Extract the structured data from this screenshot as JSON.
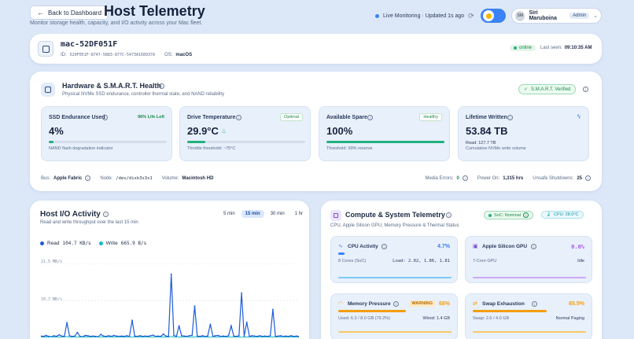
{
  "header": {
    "back_label": "Back to Dashboard",
    "title": "Host Telemetry",
    "subtitle": "Monitor storage health, capacity, and I/O activity across your Mac fleet.",
    "live_text": "Live Monitoring · Updated 1s ago",
    "user_initials": "SM",
    "user_name": "Siri Maruboina",
    "user_role": "Admin"
  },
  "host": {
    "name": "mac-52DF051F",
    "id_label": "ID:",
    "id_value": "520F051F-8747-5883-877C-5473A168937A",
    "os_label": "OS:",
    "os_value": "macOS",
    "status": "online",
    "last_seen_label": "Last seen:",
    "last_seen": "09:10:35 AM"
  },
  "hardware": {
    "title": "Hardware & S.M.A.R.T. Health",
    "subtitle": "Physical NVMe SSD endurance, controller thermal state, and NAND reliability",
    "verified": "S.M.A.R.T. Verified",
    "tiles": [
      {
        "name": "SSD Endurance Used",
        "badge": "96% Life Left",
        "value": "4%",
        "sub": "NAND flash degradation indicator",
        "progress": 0.04,
        "color": "#22b07d"
      },
      {
        "name": "Drive Temperature",
        "badge": "Optimal",
        "value": "29.9°C",
        "sub": "Throttle threshold: ~75°C",
        "progress": 0.15,
        "color": "#22b07d"
      },
      {
        "name": "Available Spare",
        "badge": "Healthy",
        "value": "100%",
        "sub": "Threshold: 99% reserve",
        "progress": 1.0,
        "color": "#22b07d"
      },
      {
        "name": "Lifetime Written",
        "badge": "",
        "value": "53.84 TB",
        "sub_top": "Read: 127.7 TB",
        "sub": "Cumulative NVMe write volume"
      }
    ],
    "bus_label": "Bus:",
    "bus": "Apple Fabric",
    "node_label": "Node:",
    "node": "/dev/disk3s3s1",
    "volume_label": "Volume:",
    "volume": "Macintosh HD",
    "media_errors_label": "Media Errors:",
    "media_errors": "0",
    "power_on_label": "Power On:",
    "power_on": "1,315 hrs",
    "unsafe_label": "Unsafe Shutdowns:",
    "unsafe": "25"
  },
  "io": {
    "title": "Host I/O Activity",
    "subtitle": "Read and write throughput over the last 15 min",
    "ranges": [
      "5 min",
      "15 min",
      "30 min",
      "1 hr"
    ],
    "active_range": "15 min",
    "read_legend": "Read",
    "read_value": "104.7 KB/s",
    "write_legend": "Write",
    "write_value": "665.9 B/s",
    "tick_top": "21.5 MB/s",
    "tick_mid": "10.7 MB/s"
  },
  "chart_data": {
    "type": "line",
    "ylim": [
      0,
      21.5
    ],
    "series": [
      {
        "name": "Read",
        "values": [
          0.4,
          0.3,
          0.6,
          0.3,
          0.2,
          0.5,
          0.3,
          0.8,
          0.4,
          0.3,
          4.5,
          0.5,
          0.3,
          0.4,
          1.5,
          0.3,
          0.2,
          0.6,
          0.5,
          0.3,
          0.4,
          0.3,
          0.2,
          0.9,
          0.4,
          0.3,
          0.5,
          0.3,
          0.6,
          0.4,
          0.3,
          0.4,
          0.3,
          0.5,
          0.3,
          5.2,
          0.4,
          0.3,
          0.5,
          0.3,
          0.4,
          0.3,
          0.5,
          0.7,
          0.3,
          0.4,
          0.3,
          1.0,
          0.4,
          0.3,
          19.2,
          0.6,
          0.3,
          3.5,
          0.5,
          0.4,
          0.3,
          0.5,
          0.6,
          9.5,
          0.4,
          0.3,
          0.5,
          0.3,
          0.4,
          4.0,
          0.3,
          0.5,
          0.6,
          0.3,
          0.4,
          0.3,
          0.5,
          3.5,
          0.4,
          0.3,
          0.5,
          13.5,
          0.4,
          4.6,
          0.3,
          0.5,
          0.4,
          0.3,
          0.5,
          0.3,
          0.4,
          0.3,
          0.5,
          8.5,
          0.3,
          0.4,
          0.5,
          0.3,
          0.4,
          0.3,
          0.5,
          0.3,
          0.4,
          0.3
        ]
      },
      {
        "name": "Write",
        "values": [
          0.1,
          0.1,
          0.2,
          0.1,
          0.1,
          0.2,
          0.1,
          0.1,
          0.2,
          0.1,
          0.3,
          0.1,
          0.1,
          0.2,
          0.1,
          0.1,
          0.1,
          0.2,
          0.1,
          0.1,
          0.2,
          0.1,
          0.1,
          0.1,
          0.2,
          0.1,
          0.1,
          0.2,
          0.1,
          0.1,
          0.2,
          0.1,
          0.1,
          0.1,
          0.2,
          0.1,
          0.1,
          0.2,
          0.1,
          0.1,
          0.2,
          0.1,
          0.1,
          0.1,
          0.2,
          0.1,
          0.1,
          0.2,
          0.1,
          0.1,
          0.3,
          0.1,
          0.1,
          0.2,
          0.1,
          0.1,
          0.2,
          0.1,
          0.1,
          0.2,
          0.1,
          0.1,
          0.1,
          0.2,
          0.1,
          0.1,
          0.2,
          0.1,
          0.1,
          0.2,
          0.1,
          0.1,
          0.2,
          0.1,
          0.1,
          0.1,
          0.2,
          0.1,
          0.1,
          0.2,
          0.1,
          0.1,
          0.2,
          0.1,
          0.1,
          0.1,
          0.2,
          0.1,
          0.1,
          0.2,
          0.1,
          0.1,
          0.1,
          0.2,
          0.1,
          0.1,
          0.2,
          0.1,
          0.1,
          0.1
        ]
      }
    ]
  },
  "compute": {
    "title": "Compute & System Telemetry",
    "subtitle": "CPU, Apple Silicon GPU, Memory Pressure & Thermal Status",
    "soc_badge": "SoC: Nominal",
    "cpu_badge": "CPU: 28.0°C",
    "tiles": [
      {
        "name": "CPU Activity",
        "value": "4.7%",
        "left": "8 Cores (SoC)",
        "right": "Load: 2.02, 1.86, 1.81",
        "color": "#3b82f6",
        "progress": 0.047
      },
      {
        "name": "Apple Silicon GPU",
        "value": "0.0%",
        "left": "7-Core GPU",
        "right": "Idle",
        "color": "#a855f7",
        "progress": 0.0
      },
      {
        "name": "Memory Pressure",
        "warning": "WARNING",
        "value": "68%",
        "left": "Used: 6.3 / 8.0 GB (79.2%)",
        "right": "Wired: 1.4 GB",
        "color": "#f59e0b",
        "progress": 0.68
      },
      {
        "name": "Swap Exhaustion",
        "value": "65.5%",
        "left": "Swap: 2.6 / 4.0 GB",
        "right": "Normal Paging",
        "color": "#f59e0b",
        "progress": 0.655
      }
    ]
  }
}
